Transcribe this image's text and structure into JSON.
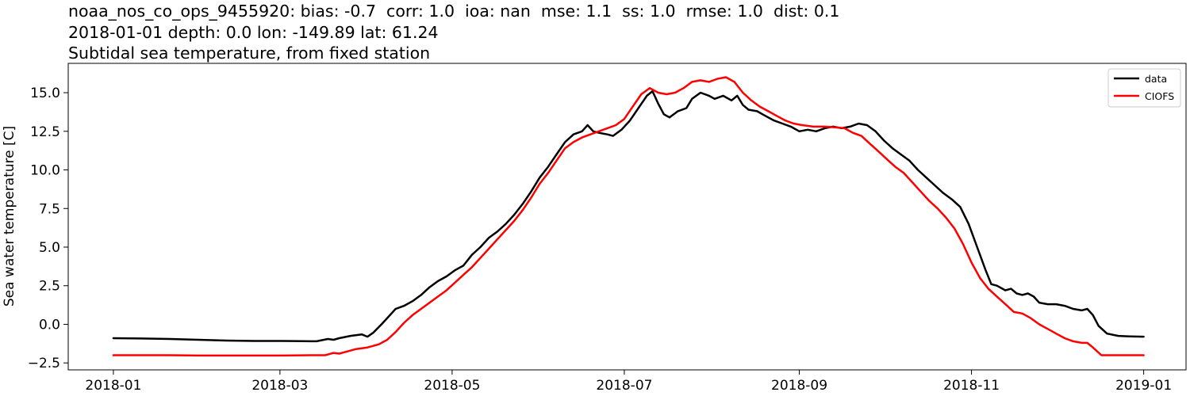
{
  "chart_data": {
    "type": "line",
    "title_lines": [
      "noaa_nos_co_ops_9455920: bias: -0.7  corr: 1.0  ioa: nan  mse: 1.1  ss: 1.0  rmse: 1.0  dist: 0.1",
      "2018-01-01 depth: 0.0 lon: -149.89 lat: 61.24",
      "Subtidal sea temperature, from fixed station"
    ],
    "xlabel": "",
    "ylabel": "Sea water temperature [C]",
    "xlim": [
      -16,
      380
    ],
    "ylim": [
      -2.95,
      16.9
    ],
    "x_unit": "days since 2018-01-01",
    "xticks": [
      {
        "value": 0,
        "label": "2018-01"
      },
      {
        "value": 59,
        "label": "2018-03"
      },
      {
        "value": 120,
        "label": "2018-05"
      },
      {
        "value": 181,
        "label": "2018-07"
      },
      {
        "value": 243,
        "label": "2018-09"
      },
      {
        "value": 304,
        "label": "2018-11"
      },
      {
        "value": 365,
        "label": "2019-01"
      }
    ],
    "yticks": [
      {
        "value": -2.5,
        "label": "−2.5"
      },
      {
        "value": 0,
        "label": "0.0"
      },
      {
        "value": 2.5,
        "label": "2.5"
      },
      {
        "value": 5,
        "label": "5.0"
      },
      {
        "value": 7.5,
        "label": "7.5"
      },
      {
        "value": 10,
        "label": "10.0"
      },
      {
        "value": 12.5,
        "label": "12.5"
      },
      {
        "value": 15,
        "label": "15.0"
      }
    ],
    "legend_position": "top-right",
    "series": [
      {
        "name": "data",
        "color": "#000000",
        "points": [
          [
            0,
            -0.9
          ],
          [
            10,
            -0.92
          ],
          [
            20,
            -0.95
          ],
          [
            30,
            -1.0
          ],
          [
            40,
            -1.05
          ],
          [
            50,
            -1.08
          ],
          [
            60,
            -1.08
          ],
          [
            70,
            -1.1
          ],
          [
            72,
            -1.1
          ],
          [
            76,
            -0.95
          ],
          [
            78,
            -1.0
          ],
          [
            80,
            -0.9
          ],
          [
            84,
            -0.75
          ],
          [
            88,
            -0.65
          ],
          [
            90,
            -0.8
          ],
          [
            92,
            -0.55
          ],
          [
            95,
            0.0
          ],
          [
            98,
            0.6
          ],
          [
            100,
            1.0
          ],
          [
            103,
            1.2
          ],
          [
            106,
            1.5
          ],
          [
            109,
            1.9
          ],
          [
            112,
            2.4
          ],
          [
            115,
            2.8
          ],
          [
            118,
            3.1
          ],
          [
            121,
            3.5
          ],
          [
            124,
            3.8
          ],
          [
            127,
            4.5
          ],
          [
            130,
            5.0
          ],
          [
            133,
            5.6
          ],
          [
            136,
            6.0
          ],
          [
            139,
            6.5
          ],
          [
            142,
            7.1
          ],
          [
            145,
            7.8
          ],
          [
            148,
            8.6
          ],
          [
            151,
            9.5
          ],
          [
            154,
            10.2
          ],
          [
            157,
            11.0
          ],
          [
            160,
            11.8
          ],
          [
            163,
            12.3
          ],
          [
            166,
            12.5
          ],
          [
            168,
            12.9
          ],
          [
            170,
            12.5
          ],
          [
            172,
            12.4
          ],
          [
            175,
            12.3
          ],
          [
            177,
            12.2
          ],
          [
            180,
            12.6
          ],
          [
            183,
            13.2
          ],
          [
            186,
            14.0
          ],
          [
            189,
            14.8
          ],
          [
            191,
            15.1
          ],
          [
            193,
            14.3
          ],
          [
            195,
            13.6
          ],
          [
            197,
            13.4
          ],
          [
            200,
            13.8
          ],
          [
            203,
            14.0
          ],
          [
            205,
            14.6
          ],
          [
            208,
            15.0
          ],
          [
            211,
            14.8
          ],
          [
            213,
            14.6
          ],
          [
            216,
            14.8
          ],
          [
            219,
            14.5
          ],
          [
            221,
            14.8
          ],
          [
            223,
            14.2
          ],
          [
            225,
            13.9
          ],
          [
            228,
            13.8
          ],
          [
            231,
            13.5
          ],
          [
            234,
            13.2
          ],
          [
            237,
            13.0
          ],
          [
            240,
            12.8
          ],
          [
            243,
            12.5
          ],
          [
            246,
            12.6
          ],
          [
            249,
            12.5
          ],
          [
            252,
            12.7
          ],
          [
            255,
            12.8
          ],
          [
            258,
            12.7
          ],
          [
            261,
            12.8
          ],
          [
            264,
            13.0
          ],
          [
            267,
            12.9
          ],
          [
            270,
            12.5
          ],
          [
            273,
            11.9
          ],
          [
            276,
            11.4
          ],
          [
            279,
            11.0
          ],
          [
            282,
            10.6
          ],
          [
            285,
            10.0
          ],
          [
            288,
            9.5
          ],
          [
            291,
            9.0
          ],
          [
            294,
            8.5
          ],
          [
            297,
            8.1
          ],
          [
            300,
            7.6
          ],
          [
            303,
            6.5
          ],
          [
            306,
            5.0
          ],
          [
            309,
            3.5
          ],
          [
            311,
            2.6
          ],
          [
            313,
            2.5
          ],
          [
            316,
            2.2
          ],
          [
            318,
            2.3
          ],
          [
            320,
            2.0
          ],
          [
            322,
            1.9
          ],
          [
            324,
            2.0
          ],
          [
            326,
            1.8
          ],
          [
            328,
            1.4
          ],
          [
            331,
            1.3
          ],
          [
            334,
            1.3
          ],
          [
            337,
            1.2
          ],
          [
            340,
            1.0
          ],
          [
            343,
            0.9
          ],
          [
            345,
            1.0
          ],
          [
            347,
            0.6
          ],
          [
            349,
            -0.1
          ],
          [
            352,
            -0.6
          ],
          [
            356,
            -0.75
          ],
          [
            360,
            -0.78
          ],
          [
            365,
            -0.8
          ]
        ]
      },
      {
        "name": "CIOFS",
        "color": "#ff0000",
        "points": [
          [
            0,
            -2.0
          ],
          [
            10,
            -2.0
          ],
          [
            20,
            -2.0
          ],
          [
            30,
            -2.02
          ],
          [
            40,
            -2.02
          ],
          [
            50,
            -2.02
          ],
          [
            60,
            -2.02
          ],
          [
            70,
            -2.0
          ],
          [
            75,
            -2.0
          ],
          [
            78,
            -1.85
          ],
          [
            80,
            -1.9
          ],
          [
            82,
            -1.8
          ],
          [
            86,
            -1.6
          ],
          [
            90,
            -1.5
          ],
          [
            94,
            -1.3
          ],
          [
            97,
            -1.0
          ],
          [
            100,
            -0.5
          ],
          [
            103,
            0.1
          ],
          [
            106,
            0.6
          ],
          [
            109,
            1.0
          ],
          [
            112,
            1.4
          ],
          [
            115,
            1.8
          ],
          [
            118,
            2.2
          ],
          [
            121,
            2.7
          ],
          [
            124,
            3.2
          ],
          [
            127,
            3.7
          ],
          [
            130,
            4.3
          ],
          [
            133,
            4.9
          ],
          [
            136,
            5.5
          ],
          [
            139,
            6.1
          ],
          [
            142,
            6.7
          ],
          [
            145,
            7.4
          ],
          [
            148,
            8.2
          ],
          [
            151,
            9.1
          ],
          [
            154,
            9.8
          ],
          [
            157,
            10.6
          ],
          [
            160,
            11.4
          ],
          [
            163,
            11.8
          ],
          [
            166,
            12.1
          ],
          [
            169,
            12.3
          ],
          [
            172,
            12.5
          ],
          [
            175,
            12.7
          ],
          [
            178,
            12.9
          ],
          [
            181,
            13.3
          ],
          [
            184,
            14.1
          ],
          [
            187,
            14.9
          ],
          [
            190,
            15.3
          ],
          [
            193,
            15.0
          ],
          [
            196,
            14.9
          ],
          [
            199,
            15.0
          ],
          [
            202,
            15.3
          ],
          [
            205,
            15.7
          ],
          [
            208,
            15.8
          ],
          [
            211,
            15.7
          ],
          [
            214,
            15.9
          ],
          [
            217,
            16.0
          ],
          [
            220,
            15.7
          ],
          [
            223,
            15.0
          ],
          [
            226,
            14.5
          ],
          [
            229,
            14.1
          ],
          [
            232,
            13.8
          ],
          [
            235,
            13.5
          ],
          [
            238,
            13.2
          ],
          [
            241,
            13.0
          ],
          [
            244,
            12.9
          ],
          [
            248,
            12.8
          ],
          [
            252,
            12.8
          ],
          [
            256,
            12.75
          ],
          [
            259,
            12.7
          ],
          [
            262,
            12.4
          ],
          [
            265,
            12.2
          ],
          [
            268,
            11.7
          ],
          [
            271,
            11.2
          ],
          [
            274,
            10.7
          ],
          [
            277,
            10.2
          ],
          [
            280,
            9.8
          ],
          [
            283,
            9.2
          ],
          [
            286,
            8.6
          ],
          [
            289,
            8.0
          ],
          [
            292,
            7.5
          ],
          [
            295,
            6.9
          ],
          [
            298,
            6.2
          ],
          [
            301,
            5.2
          ],
          [
            304,
            4.0
          ],
          [
            307,
            3.0
          ],
          [
            310,
            2.3
          ],
          [
            313,
            1.8
          ],
          [
            316,
            1.3
          ],
          [
            319,
            0.8
          ],
          [
            322,
            0.7
          ],
          [
            325,
            0.4
          ],
          [
            328,
            0.0
          ],
          [
            331,
            -0.3
          ],
          [
            334,
            -0.6
          ],
          [
            337,
            -0.9
          ],
          [
            340,
            -1.1
          ],
          [
            343,
            -1.2
          ],
          [
            345,
            -1.2
          ],
          [
            347,
            -1.5
          ],
          [
            350,
            -2.0
          ],
          [
            355,
            -2.0
          ],
          [
            360,
            -2.0
          ],
          [
            365,
            -2.0
          ]
        ]
      }
    ]
  }
}
